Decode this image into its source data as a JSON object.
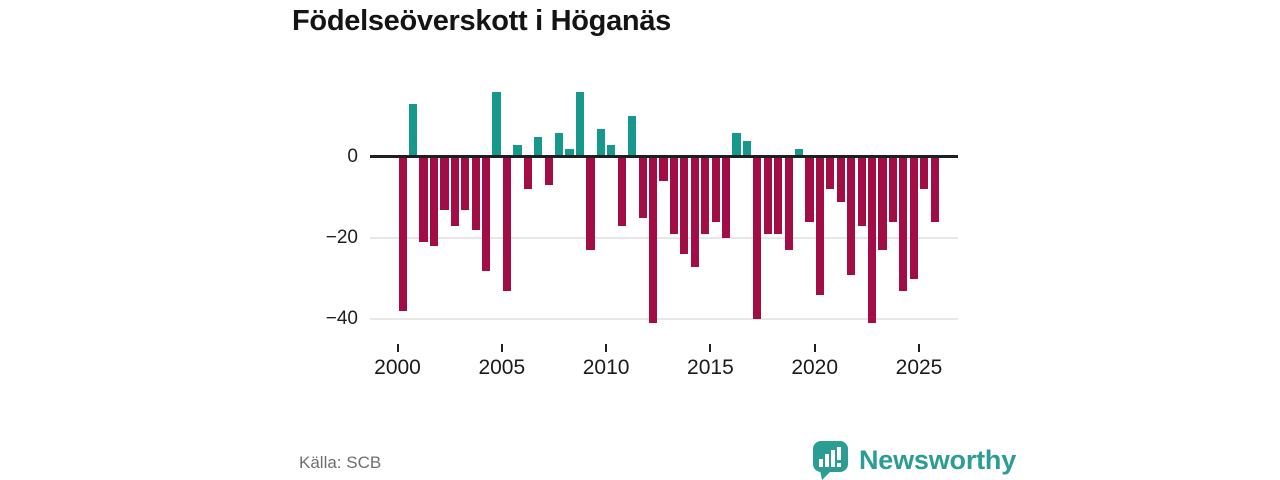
{
  "header": {
    "title": "Födelseöverskott i Höganäs"
  },
  "footer": {
    "source": "Källa: SCB",
    "brand": "Newsworthy",
    "brand_color": "#2b9d92",
    "logo_icon": "speech-bubble-bar-chart-icon"
  },
  "chart_data": {
    "type": "bar",
    "title": "Födelseöverskott i Höganäs",
    "xlabel": "",
    "ylabel": "",
    "period": "half-year",
    "grid": true,
    "legend": false,
    "ylim": [
      -44,
      18
    ],
    "y_ticks": [
      {
        "label": "0",
        "value": 0
      },
      {
        "label": "−20",
        "value": -20
      },
      {
        "label": "−40",
        "value": -40
      }
    ],
    "x_ticks": [
      "2000",
      "2005",
      "2010",
      "2015",
      "2020",
      "2025"
    ],
    "colors": {
      "positive": "#16998c",
      "negative": "#a30d45"
    },
    "series": [
      {
        "name": "Födelseöverskott",
        "points": [
          {
            "x": "2000 H1",
            "y": -38
          },
          {
            "x": "2000 H2",
            "y": 13
          },
          {
            "x": "2001 H1",
            "y": -21
          },
          {
            "x": "2001 H2",
            "y": -22
          },
          {
            "x": "2002 H1",
            "y": -13
          },
          {
            "x": "2002 H2",
            "y": -17
          },
          {
            "x": "2003 H1",
            "y": -13
          },
          {
            "x": "2003 H2",
            "y": -18
          },
          {
            "x": "2004 H1",
            "y": -28
          },
          {
            "x": "2004 H2",
            "y": 16
          },
          {
            "x": "2005 H1",
            "y": -33
          },
          {
            "x": "2005 H2",
            "y": 3
          },
          {
            "x": "2006 H1",
            "y": -8
          },
          {
            "x": "2006 H2",
            "y": 5
          },
          {
            "x": "2007 H1",
            "y": -7
          },
          {
            "x": "2007 H2",
            "y": 6
          },
          {
            "x": "2008 H1",
            "y": 2
          },
          {
            "x": "2008 H2",
            "y": 16
          },
          {
            "x": "2009 H1",
            "y": -23
          },
          {
            "x": "2009 H2",
            "y": 7
          },
          {
            "x": "2010 H1",
            "y": 3
          },
          {
            "x": "2010 H2",
            "y": -17
          },
          {
            "x": "2011 H1",
            "y": 10
          },
          {
            "x": "2011 H2",
            "y": -15
          },
          {
            "x": "2012 H1",
            "y": -41
          },
          {
            "x": "2012 H2",
            "y": -6
          },
          {
            "x": "2013 H1",
            "y": -19
          },
          {
            "x": "2013 H2",
            "y": -24
          },
          {
            "x": "2014 H1",
            "y": -27
          },
          {
            "x": "2014 H2",
            "y": -19
          },
          {
            "x": "2015 H1",
            "y": -16
          },
          {
            "x": "2015 H2",
            "y": -20
          },
          {
            "x": "2016 H1",
            "y": 6
          },
          {
            "x": "2016 H2",
            "y": 4
          },
          {
            "x": "2017 H1",
            "y": -40
          },
          {
            "x": "2017 H2",
            "y": -19
          },
          {
            "x": "2018 H1",
            "y": -19
          },
          {
            "x": "2018 H2",
            "y": -23
          },
          {
            "x": "2019 H1",
            "y": 2
          },
          {
            "x": "2019 H2",
            "y": -16
          },
          {
            "x": "2020 H1",
            "y": -34
          },
          {
            "x": "2020 H2",
            "y": -8
          },
          {
            "x": "2021 H1",
            "y": -11
          },
          {
            "x": "2021 H2",
            "y": -29
          },
          {
            "x": "2022 H1",
            "y": -17
          },
          {
            "x": "2022 H2",
            "y": -41
          },
          {
            "x": "2023 H1",
            "y": -23
          },
          {
            "x": "2023 H2",
            "y": -16
          },
          {
            "x": "2024 H1",
            "y": -33
          },
          {
            "x": "2024 H2",
            "y": -30
          },
          {
            "x": "2025 H1",
            "y": -8
          },
          {
            "x": "2025 H2",
            "y": -16
          }
        ]
      }
    ]
  }
}
